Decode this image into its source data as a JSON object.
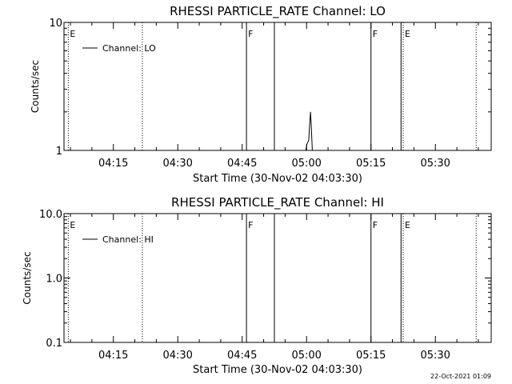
{
  "footer": {
    "timestamp": "22-Oct-2021 01:09"
  },
  "chart_data": [
    {
      "type": "line",
      "title": "RHESSI PARTICLE_RATE Channel: LO",
      "xlabel": "Start Time (30-Nov-02 04:03:30)",
      "ylabel": "Counts/sec",
      "xlim": [
        "04:03:30",
        "05:43:00"
      ],
      "ylim": [
        1,
        10
      ],
      "yscale": "log",
      "x_ticks": [
        "04:15",
        "04:30",
        "04:45",
        "05:00",
        "05:15",
        "05:30"
      ],
      "y_ticks": [
        "1",
        "10"
      ],
      "legend": {
        "position": "top-left",
        "entries": [
          "Channel: LO"
        ]
      },
      "series": [
        {
          "name": "Channel: LO",
          "x": [
            "04:03:30",
            "04:59:50",
            "05:00:00",
            "05:00:30",
            "05:00:40",
            "05:00:55",
            "05:01:05",
            "05:01:20",
            "05:43:00"
          ],
          "y": [
            1,
            1,
            1.1,
            1.2,
            1.5,
            2.0,
            1.6,
            1.0,
            1
          ]
        }
      ],
      "markers": [
        {
          "time": "04:04:30",
          "label": "E",
          "style": "dotted"
        },
        {
          "time": "04:21:45",
          "label": "",
          "style": "dotted"
        },
        {
          "time": "04:46:00",
          "label": "F",
          "style": "solid"
        },
        {
          "time": "04:52:30",
          "label": "",
          "style": "solid"
        },
        {
          "time": "05:15:00",
          "label": "F",
          "style": "solid"
        },
        {
          "time": "05:22:00",
          "label": "",
          "style": "solid"
        },
        {
          "time": "05:22:30",
          "label": "E",
          "style": "dotted"
        },
        {
          "time": "05:39:30",
          "label": "",
          "style": "dotted"
        }
      ]
    },
    {
      "type": "line",
      "title": "RHESSI PARTICLE_RATE Channel: HI",
      "xlabel": "Start Time (30-Nov-02 04:03:30)",
      "ylabel": "Counts/sec",
      "xlim": [
        "04:03:30",
        "05:43:00"
      ],
      "ylim": [
        0.1,
        10
      ],
      "yscale": "log",
      "x_ticks": [
        "04:15",
        "04:30",
        "04:45",
        "05:00",
        "05:15",
        "05:30"
      ],
      "y_ticks": [
        "0.1",
        "1.0",
        "10.0"
      ],
      "legend": {
        "position": "top-left",
        "entries": [
          "Channel: HI"
        ]
      },
      "series": [
        {
          "name": "Channel: HI",
          "x": [],
          "y": []
        }
      ],
      "markers": [
        {
          "time": "04:04:30",
          "label": "E",
          "style": "dotted"
        },
        {
          "time": "04:21:45",
          "label": "",
          "style": "dotted"
        },
        {
          "time": "04:46:00",
          "label": "F",
          "style": "solid"
        },
        {
          "time": "04:52:30",
          "label": "",
          "style": "solid"
        },
        {
          "time": "05:15:00",
          "label": "F",
          "style": "solid"
        },
        {
          "time": "05:22:00",
          "label": "",
          "style": "solid"
        },
        {
          "time": "05:22:30",
          "label": "E",
          "style": "dotted"
        },
        {
          "time": "05:39:30",
          "label": "",
          "style": "dotted"
        }
      ]
    }
  ]
}
